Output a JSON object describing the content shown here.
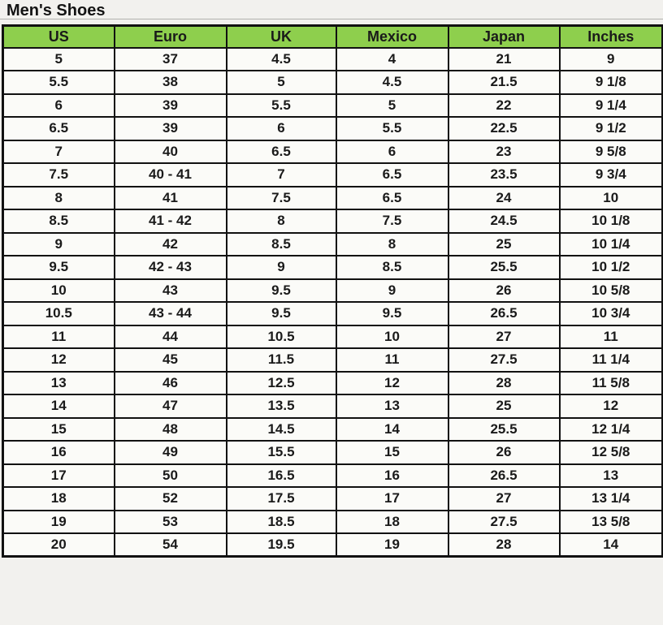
{
  "page": {
    "title": "Men's Shoes"
  },
  "colors": {
    "header_bg": "#8ecf4d",
    "border": "#111111",
    "page_bg": "#f2f1ee",
    "cell_bg": "#fbfbf8",
    "text": "#1a1a1a"
  },
  "chart_data": {
    "type": "table",
    "title": "Men's Shoes",
    "columns": [
      "US",
      "Euro",
      "UK",
      "Mexico",
      "Japan",
      "Inches"
    ],
    "rows": [
      [
        "5",
        "37",
        "4.5",
        "4",
        "21",
        "9"
      ],
      [
        "5.5",
        "38",
        "5",
        "4.5",
        "21.5",
        "9 1/8"
      ],
      [
        "6",
        "39",
        "5.5",
        "5",
        "22",
        "9 1/4"
      ],
      [
        "6.5",
        "39",
        "6",
        "5.5",
        "22.5",
        "9 1/2"
      ],
      [
        "7",
        "40",
        "6.5",
        "6",
        "23",
        "9 5/8"
      ],
      [
        "7.5",
        "40 - 41",
        "7",
        "6.5",
        "23.5",
        "9 3/4"
      ],
      [
        "8",
        "41",
        "7.5",
        "6.5",
        "24",
        "10"
      ],
      [
        "8.5",
        "41 - 42",
        "8",
        "7.5",
        "24.5",
        "10 1/8"
      ],
      [
        "9",
        "42",
        "8.5",
        "8",
        "25",
        "10 1/4"
      ],
      [
        "9.5",
        "42 - 43",
        "9",
        "8.5",
        "25.5",
        "10 1/2"
      ],
      [
        "10",
        "43",
        "9.5",
        "9",
        "26",
        "10 5/8"
      ],
      [
        "10.5",
        "43 - 44",
        "9.5",
        "9.5",
        "26.5",
        "10 3/4"
      ],
      [
        "11",
        "44",
        "10.5",
        "10",
        "27",
        "11"
      ],
      [
        "12",
        "45",
        "11.5",
        "11",
        "27.5",
        "11 1/4"
      ],
      [
        "13",
        "46",
        "12.5",
        "12",
        "28",
        "11 5/8"
      ],
      [
        "14",
        "47",
        "13.5",
        "13",
        "25",
        "12"
      ],
      [
        "15",
        "48",
        "14.5",
        "14",
        "25.5",
        "12 1/4"
      ],
      [
        "16",
        "49",
        "15.5",
        "15",
        "26",
        "12 5/8"
      ],
      [
        "17",
        "50",
        "16.5",
        "16",
        "26.5",
        "13"
      ],
      [
        "18",
        "52",
        "17.5",
        "17",
        "27",
        "13 1/4"
      ],
      [
        "19",
        "53",
        "18.5",
        "18",
        "27.5",
        "13 5/8"
      ],
      [
        "20",
        "54",
        "19.5",
        "19",
        "28",
        "14"
      ]
    ]
  }
}
